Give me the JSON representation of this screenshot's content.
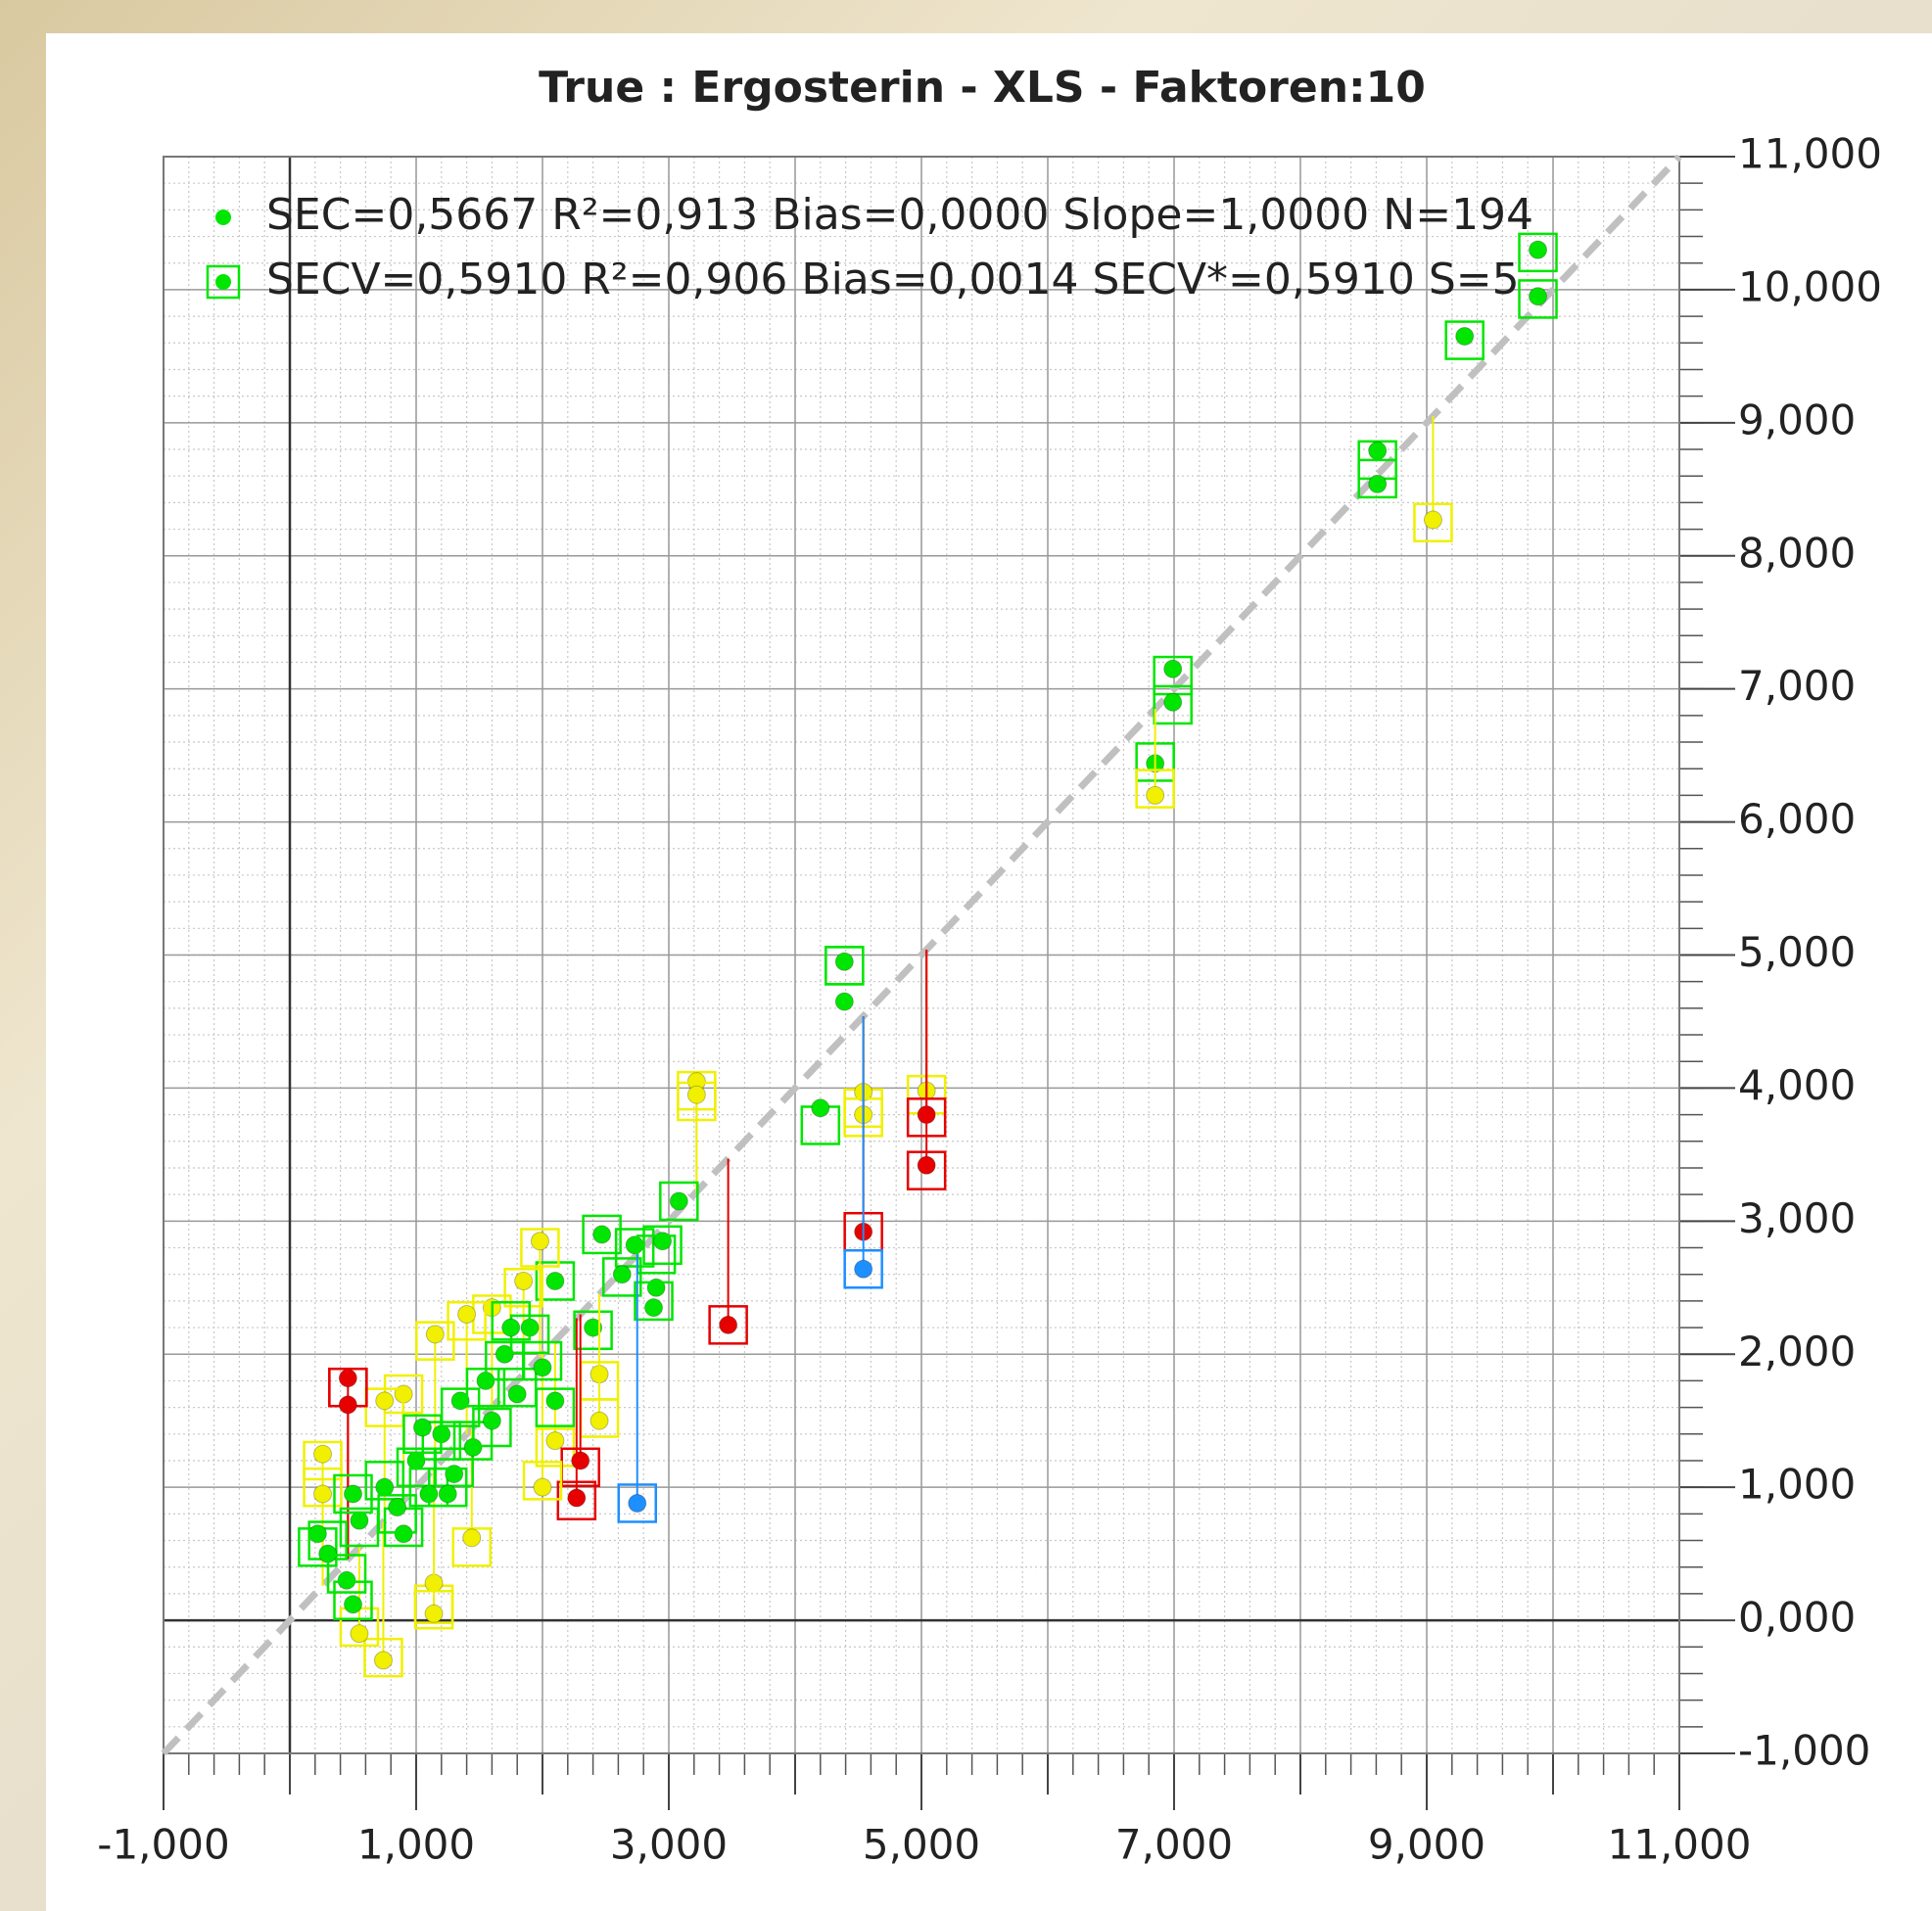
{
  "chart_data": {
    "type": "scatter",
    "title": "True : Ergosterin - XLS - Faktoren:10",
    "xlim": [
      -1,
      11
    ],
    "ylim": [
      -1,
      11
    ],
    "xticks": [
      {
        "value": -1,
        "label": "-1,000"
      },
      {
        "value": 1,
        "label": "1,000"
      },
      {
        "value": 3,
        "label": "3,000"
      },
      {
        "value": 5,
        "label": "5,000"
      },
      {
        "value": 7,
        "label": "7,000"
      },
      {
        "value": 9,
        "label": "9,000"
      },
      {
        "value": 11,
        "label": "11,000"
      }
    ],
    "x_minor_ticks": [
      0,
      2,
      4,
      6,
      8,
      10
    ],
    "yticks": [
      {
        "value": -1,
        "label": "-1,000"
      },
      {
        "value": 0,
        "label": "0,000"
      },
      {
        "value": 1,
        "label": "1,000"
      },
      {
        "value": 2,
        "label": "2,000"
      },
      {
        "value": 3,
        "label": "3,000"
      },
      {
        "value": 4,
        "label": "4,000"
      },
      {
        "value": 5,
        "label": "5,000"
      },
      {
        "value": 6,
        "label": "6,000"
      },
      {
        "value": 7,
        "label": "7,000"
      },
      {
        "value": 8,
        "label": "8,000"
      },
      {
        "value": 9,
        "label": "9,000"
      },
      {
        "value": 10,
        "label": "10,000"
      },
      {
        "value": 11,
        "label": "11,000"
      }
    ],
    "grid": true,
    "minor_grid_step": 0.2,
    "diagonal": true,
    "diagonal_color": "#c0c0c0",
    "legend": "top-left",
    "point_colors": [
      "#00e600",
      "#00e600",
      "#00e600",
      "#00e600",
      "#00e600",
      "#f0f000",
      "#00e600",
      "#00e600",
      "#00e600",
      "#f0f000",
      "#00e600",
      "#00e600",
      "#00e600",
      "#f0f000",
      "#f0f000",
      "#e60000",
      "#1e8fff",
      "#f0f000",
      "#e60000",
      "#e60000",
      "#e60000",
      "#f0f000",
      "#f0f000",
      "#00e600",
      "#00e600",
      "#00e600",
      "#00e600",
      "#00e600",
      "#00e600",
      "#00e600",
      "#00e600",
      "#00e600",
      "#f0f000",
      "#f0f000",
      "#f0f000",
      "#f0f000",
      "#f0f000",
      "#f0f000",
      "#f0f000",
      "#f0f000",
      "#f0f000",
      "#f0f000",
      "#e60000",
      "#e60000",
      "#1e8fff",
      "#e60000",
      "#e60000",
      "#f0f000",
      "#f0f000",
      "#f0f000",
      "#f0f000",
      "#f0f000",
      "#f0f000",
      "#f0f000",
      "#f0f000",
      "#00e600",
      "#00e600",
      "#00e600",
      "#00e600",
      "#00e600",
      "#00e600",
      "#00e600",
      "#00e600",
      "#00e600",
      "#00e600",
      "#00e600",
      "#00e600",
      "#00e600",
      "#00e600",
      "#00e600",
      "#00e600",
      "#00e600",
      "#00e600",
      "#00e600",
      "#00e600",
      "#00e600",
      "#00e600",
      "#00e600",
      "#00e600",
      "#00e600"
    ],
    "series": [
      {
        "name": "SEC=0,5667 R²=0,913 Bias=0,0000 Slope=1,0000 N=194",
        "marker": "dot",
        "color": "#00e600",
        "x": [
          9.88,
          9.88,
          9.3,
          8.61,
          8.61,
          9.05,
          6.99,
          6.99,
          6.85,
          6.85,
          4.39,
          4.39,
          4.2,
          4.54,
          4.54,
          4.54,
          4.54,
          5.04,
          5.04,
          5.04,
          3.47,
          3.22,
          3.22,
          3.08,
          2.47,
          2.73,
          2.95,
          2.9,
          2.88,
          2.63,
          2.4,
          2.1,
          1.98,
          1.85,
          1.6,
          1.4,
          1.15,
          0.9,
          0.75,
          2.45,
          2.45,
          2.1,
          2.3,
          2.27,
          2.75,
          0.46,
          0.46,
          0.26,
          0.26,
          0.74,
          0.55,
          1.14,
          1.14,
          1.44,
          2.0,
          0.22,
          0.3,
          0.45,
          0.5,
          0.55,
          0.5,
          0.75,
          0.9,
          1.0,
          1.1,
          1.2,
          1.3,
          1.35,
          1.45,
          1.55,
          1.6,
          1.7,
          1.8,
          1.9,
          2.0,
          2.1,
          1.25,
          0.85,
          1.05,
          1.75
        ],
        "values": [
          10.3,
          9.95,
          9.65,
          8.79,
          8.54,
          8.27,
          7.15,
          6.9,
          6.44,
          6.2,
          4.95,
          4.65,
          3.85,
          3.97,
          3.8,
          2.92,
          2.64,
          3.98,
          3.8,
          3.42,
          2.22,
          4.05,
          3.95,
          3.15,
          2.9,
          2.82,
          2.85,
          2.5,
          2.35,
          2.6,
          2.2,
          2.55,
          2.85,
          2.55,
          2.35,
          2.3,
          2.15,
          1.7,
          1.65,
          1.85,
          1.5,
          1.35,
          1.2,
          0.92,
          0.88,
          1.82,
          1.62,
          1.25,
          0.95,
          -0.3,
          -0.1,
          0.28,
          0.05,
          0.62,
          1.0,
          0.65,
          0.5,
          0.3,
          0.12,
          0.75,
          0.95,
          1.0,
          0.65,
          1.2,
          0.95,
          1.4,
          1.1,
          1.65,
          1.3,
          1.8,
          1.5,
          2.0,
          1.7,
          2.2,
          1.9,
          1.65,
          0.95,
          0.85,
          1.45,
          2.2
        ]
      },
      {
        "name": "SECV=0,5910 R²=0,906 Bias=0,0014 SECV*=0,5910 S=5",
        "marker": "square",
        "color": "#00e600",
        "x": [
          9.88,
          9.88,
          9.3,
          8.61,
          8.61,
          9.05,
          6.99,
          6.99,
          6.85,
          6.85,
          4.39,
          4.39,
          4.2,
          4.54,
          4.54,
          4.54,
          4.54,
          5.04,
          5.04,
          5.04,
          3.47,
          3.22,
          3.22,
          3.08,
          2.47,
          2.73,
          2.95,
          2.9,
          2.88,
          2.63,
          2.4,
          2.1,
          1.98,
          1.85,
          1.6,
          1.4,
          1.15,
          0.9,
          0.75,
          2.45,
          2.45,
          2.1,
          2.3,
          2.27,
          2.75,
          0.46,
          0.46,
          0.26,
          0.26,
          0.74,
          0.55,
          1.14,
          1.14,
          1.44,
          2.0,
          0.22,
          0.3,
          0.45,
          0.5,
          0.55,
          0.5,
          0.75,
          0.9,
          1.0,
          1.1,
          1.2,
          1.3,
          1.35,
          1.45,
          1.55,
          1.6,
          1.7,
          1.8,
          1.9,
          2.0,
          2.1,
          1.25,
          0.85,
          1.05,
          1.75
        ],
        "values": [
          10.28,
          9.93,
          9.62,
          8.72,
          8.58,
          8.25,
          7.1,
          6.88,
          6.45,
          6.25,
          4.92,
          4.92,
          3.72,
          3.85,
          3.78,
          2.92,
          2.64,
          3.95,
          3.78,
          3.38,
          2.22,
          3.98,
          3.9,
          3.15,
          2.9,
          2.8,
          2.82,
          2.75,
          2.4,
          2.58,
          2.18,
          2.55,
          2.8,
          2.5,
          2.3,
          2.25,
          2.1,
          1.7,
          1.6,
          1.8,
          1.52,
          1.3,
          1.15,
          0.9,
          0.88,
          1.75,
          1.75,
          1.2,
          1.0,
          -0.28,
          -0.05,
          0.12,
          0.08,
          0.55,
          1.05,
          0.55,
          0.6,
          0.35,
          0.15,
          0.7,
          0.95,
          1.05,
          0.7,
          1.15,
          1.0,
          1.35,
          1.15,
          1.6,
          1.35,
          1.75,
          1.45,
          1.95,
          1.75,
          2.15,
          1.95,
          1.6,
          1.0,
          0.8,
          1.4,
          2.25
        ]
      }
    ]
  }
}
